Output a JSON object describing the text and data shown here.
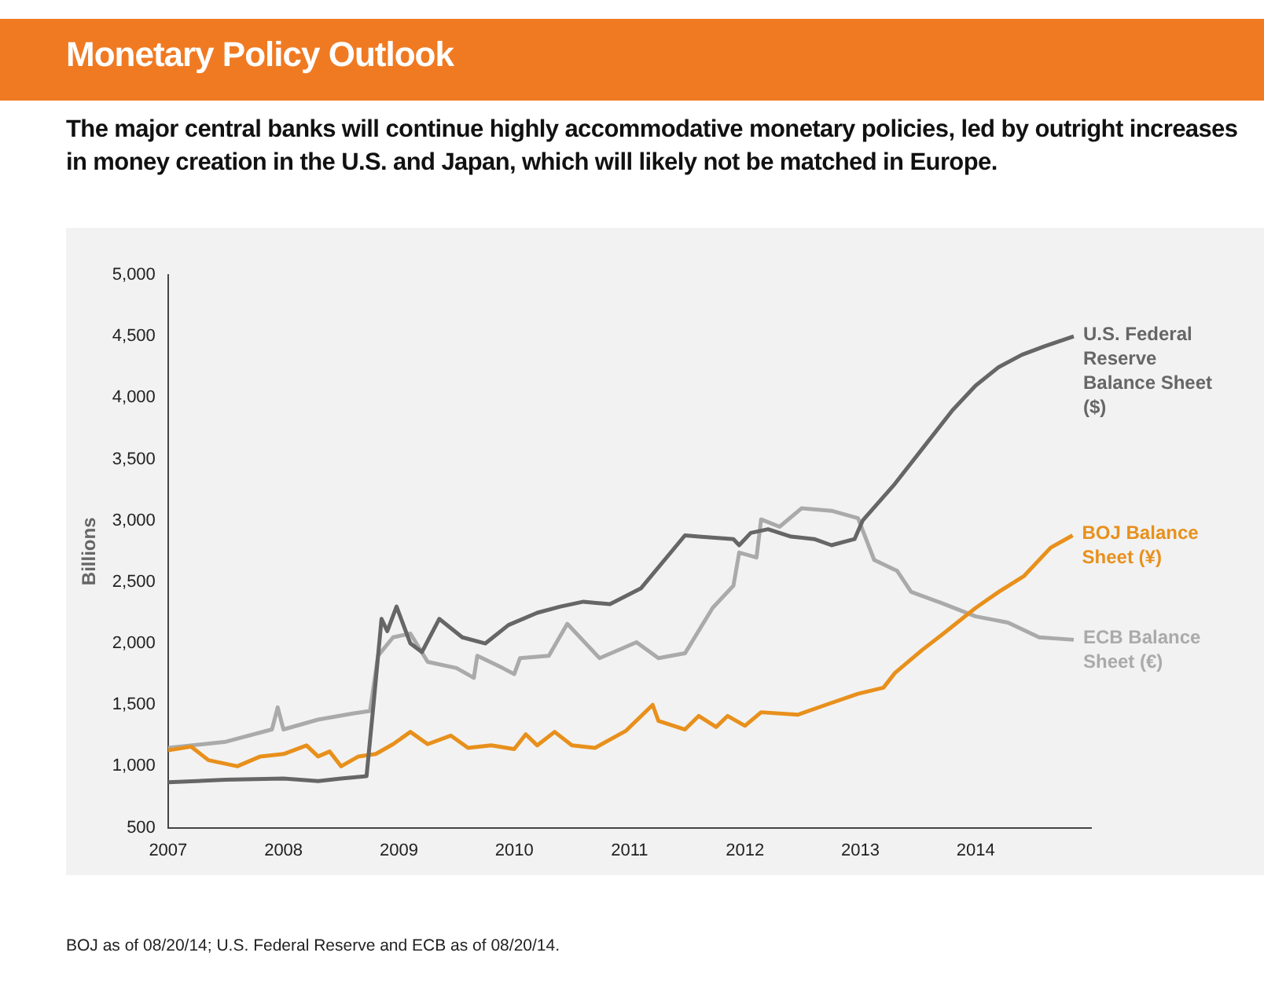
{
  "chart_data": {
    "type": "line",
    "title": "Monetary Policy Outlook",
    "subtitle": "The major central banks will continue highly accommodative monetary policies, led by outright increases in money creation in the U.S. and Japan, which will likely not be matched in Europe.",
    "ylabel": "Billions",
    "annotations": [
      "BOJ as of 08/20/14; U.S. Federal Reserve and ECB as of 08/20/14."
    ],
    "xlim": [
      2007,
      2015
    ],
    "xticks": [
      2007,
      2008,
      2009,
      2010,
      2011,
      2012,
      2013,
      2014
    ],
    "ylim": [
      500,
      5000
    ],
    "yticks": [
      {
        "value": 500,
        "label": "500"
      },
      {
        "value": 1000,
        "label": "1,000"
      },
      {
        "value": 1500,
        "label": "1,500"
      },
      {
        "value": 2000,
        "label": "2,000"
      },
      {
        "value": 2500,
        "label": "2,500"
      },
      {
        "value": 3000,
        "label": "3,000"
      },
      {
        "value": 3500,
        "label": "3,500"
      },
      {
        "value": 4000,
        "label": "4,000"
      },
      {
        "value": 4500,
        "label": "4,500"
      },
      {
        "value": 5000,
        "label": "5,000"
      }
    ],
    "grid": false,
    "legend": false,
    "marker": "none",
    "line_style": "solid",
    "series": [
      {
        "name": "U.S. Federal Reserve Balance Sheet ($)",
        "color": "#666666",
        "x": [
          2007,
          2007.5,
          2008,
          2008.3,
          2008.5,
          2008.72,
          2008.78,
          2008.85,
          2008.9,
          2008.98,
          2009.1,
          2009.2,
          2009.35,
          2009.55,
          2009.75,
          2009.95,
          2010.2,
          2010.4,
          2010.6,
          2010.83,
          2011.1,
          2011.48,
          2011.6,
          2011.9,
          2011.95,
          2012.05,
          2012.2,
          2012.4,
          2012.6,
          2012.75,
          2012.95,
          2013.02,
          2013.3,
          2013.55,
          2013.8,
          2014.0,
          2014.2,
          2014.4,
          2014.6,
          2014.85
        ],
        "values": [
          870,
          890,
          900,
          880,
          900,
          920,
          1500,
          2200,
          2100,
          2300,
          2000,
          1930,
          2200,
          2050,
          2000,
          2150,
          2250,
          2300,
          2340,
          2320,
          2450,
          2880,
          2870,
          2850,
          2800,
          2900,
          2930,
          2870,
          2850,
          2800,
          2850,
          3000,
          3300,
          3600,
          3900,
          4100,
          4250,
          4350,
          4420,
          4500
        ]
      },
      {
        "name": "BOJ Balance Sheet (¥)",
        "color": "#e8901c",
        "x": [
          2007,
          2007.2,
          2007.35,
          2007.6,
          2007.8,
          2008,
          2008.2,
          2008.3,
          2008.4,
          2008.5,
          2008.65,
          2008.8,
          2008.95,
          2009.1,
          2009.25,
          2009.45,
          2009.6,
          2009.8,
          2010.0,
          2010.1,
          2010.2,
          2010.35,
          2010.5,
          2010.7,
          2010.97,
          2011.2,
          2011.25,
          2011.48,
          2011.6,
          2011.75,
          2011.85,
          2012.0,
          2012.14,
          2012.46,
          2012.7,
          2012.98,
          2013.2,
          2013.3,
          2013.54,
          2013.72,
          2014.0,
          2014.2,
          2014.42,
          2014.65,
          2014.84
        ],
        "values": [
          1130,
          1160,
          1050,
          1000,
          1080,
          1100,
          1170,
          1080,
          1120,
          1000,
          1080,
          1100,
          1180,
          1280,
          1180,
          1250,
          1150,
          1170,
          1140,
          1260,
          1170,
          1280,
          1170,
          1150,
          1290,
          1500,
          1370,
          1300,
          1410,
          1320,
          1410,
          1330,
          1440,
          1420,
          1500,
          1590,
          1640,
          1760,
          1950,
          2080,
          2290,
          2420,
          2550,
          2780,
          2880
        ]
      },
      {
        "name": "ECB Balance Sheet (€)",
        "color": "#aaaaaa",
        "x": [
          2007,
          2007.5,
          2007.9,
          2007.95,
          2008.0,
          2008.3,
          2008.6,
          2008.75,
          2008.82,
          2008.95,
          2009.1,
          2009.25,
          2009.5,
          2009.65,
          2009.68,
          2009.9,
          2010.0,
          2010.05,
          2010.3,
          2010.46,
          2010.74,
          2011.06,
          2011.25,
          2011.48,
          2011.72,
          2011.9,
          2011.95,
          2012.1,
          2012.14,
          2012.3,
          2012.49,
          2012.75,
          2012.98,
          2013.12,
          2013.32,
          2013.44,
          2013.7,
          2014.0,
          2014.28,
          2014.55,
          2014.85
        ],
        "values": [
          1150,
          1200,
          1300,
          1480,
          1300,
          1380,
          1430,
          1450,
          1900,
          2050,
          2080,
          1850,
          1800,
          1720,
          1900,
          1800,
          1750,
          1880,
          1900,
          2160,
          1880,
          2010,
          1880,
          1920,
          2290,
          2470,
          2740,
          2700,
          3010,
          2950,
          3100,
          3080,
          3020,
          2680,
          2590,
          2420,
          2330,
          2220,
          2170,
          2050,
          2030
        ]
      }
    ]
  }
}
